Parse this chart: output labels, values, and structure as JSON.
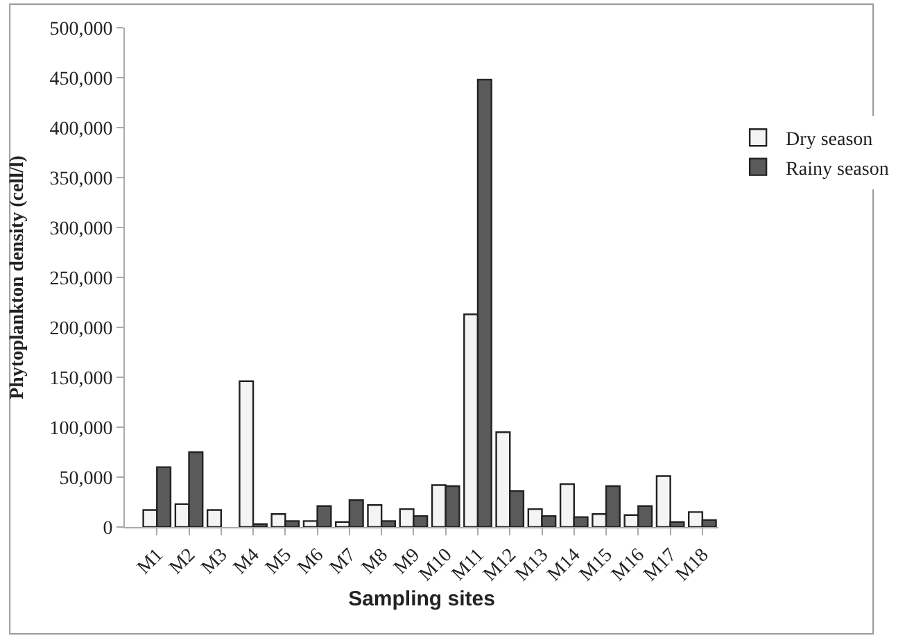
{
  "chart_data": {
    "type": "bar",
    "xlabel": "Sampling sites",
    "ylabel": "Phytoplankton density (cell/l)",
    "categories": [
      "M1",
      "M2",
      "M3",
      "M4",
      "M5",
      "M6",
      "M7",
      "M8",
      "M9",
      "M10",
      "M11",
      "M12",
      "M13",
      "M14",
      "M15",
      "M16",
      "M17",
      "M18"
    ],
    "series": [
      {
        "name": "Dry season",
        "color": "#f4f4f4",
        "values": [
          17000,
          23000,
          17000,
          146000,
          13000,
          6000,
          5000,
          22000,
          18000,
          42000,
          213000,
          95000,
          18000,
          43000,
          13000,
          12000,
          51000,
          15000
        ]
      },
      {
        "name": "Rainy season",
        "color": "#5a5a5a",
        "values": [
          60000,
          75000,
          0,
          3000,
          6000,
          21000,
          27000,
          6000,
          11000,
          41000,
          448000,
          36000,
          11000,
          10000,
          41000,
          21000,
          5000,
          7000
        ]
      }
    ],
    "ylim": [
      0,
      500000
    ],
    "yticks": [
      {
        "value": 0,
        "label": "0"
      },
      {
        "value": 50000,
        "label": "50,000"
      },
      {
        "value": 100000,
        "label": "100,000"
      },
      {
        "value": 150000,
        "label": "150,000"
      },
      {
        "value": 200000,
        "label": "200,000"
      },
      {
        "value": 250000,
        "label": "250,000"
      },
      {
        "value": 300000,
        "label": "300,000"
      },
      {
        "value": 350000,
        "label": "350,000"
      },
      {
        "value": 400000,
        "label": "400,000"
      },
      {
        "value": 450000,
        "label": "450,000"
      },
      {
        "value": 500000,
        "label": "500,000"
      }
    ],
    "legend": "right"
  }
}
